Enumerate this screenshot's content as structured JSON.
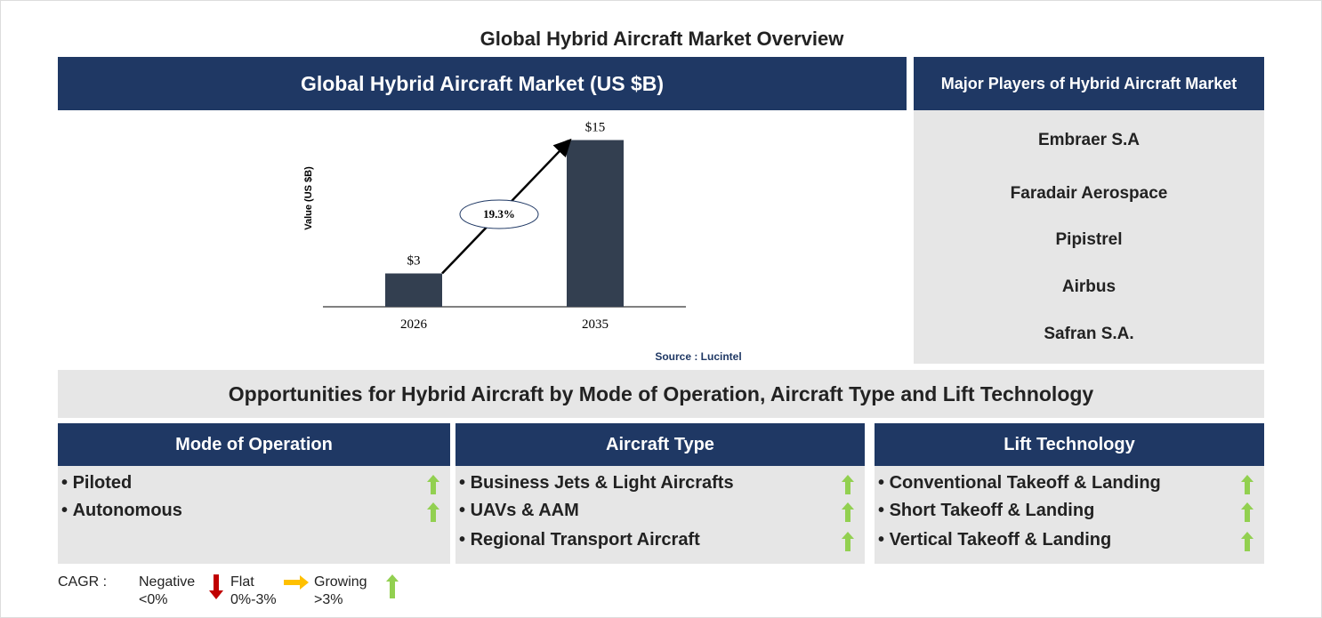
{
  "title": "Global Hybrid Aircraft Market Overview",
  "chart_header": "Global Hybrid Aircraft Market (US $B)",
  "chart_data": {
    "type": "bar",
    "y_label": "Value (US $B)",
    "categories": [
      "2026",
      "2035"
    ],
    "values": [
      3,
      15
    ],
    "value_labels": [
      "$3",
      "$15"
    ],
    "color": "#333f50",
    "ylim": [
      0,
      17
    ],
    "cagr_label": "19.3%",
    "source": "Source : Lucintel"
  },
  "players": {
    "title": "Major Players of Hybrid Aircraft Market",
    "items": [
      "Embraer S.A",
      "Faradair Aerospace",
      "Pipistrel",
      "Airbus",
      "Safran S.A."
    ]
  },
  "opportunities": {
    "title": "Opportunities for Hybrid Aircraft by Mode of Operation, Aircraft Type and Lift Technology",
    "columns": [
      {
        "title": "Mode of Operation",
        "items": [
          "Piloted",
          "Autonomous"
        ]
      },
      {
        "title": "Aircraft Type",
        "items": [
          "Business Jets & Light Aircrafts",
          "UAVs & AAM",
          "Regional Transport Aircraft"
        ]
      },
      {
        "title": "Lift Technology",
        "items": [
          "Conventional Takeoff & Landing",
          "Short Takeoff & Landing",
          "Vertical Takeoff & Landing"
        ]
      }
    ]
  },
  "legend": {
    "label": "CAGR :",
    "items": [
      {
        "name": "Negative",
        "range": "<0%"
      },
      {
        "name": "Flat",
        "range": "0%-3%"
      },
      {
        "name": "Growing",
        "range": ">3%"
      }
    ]
  }
}
